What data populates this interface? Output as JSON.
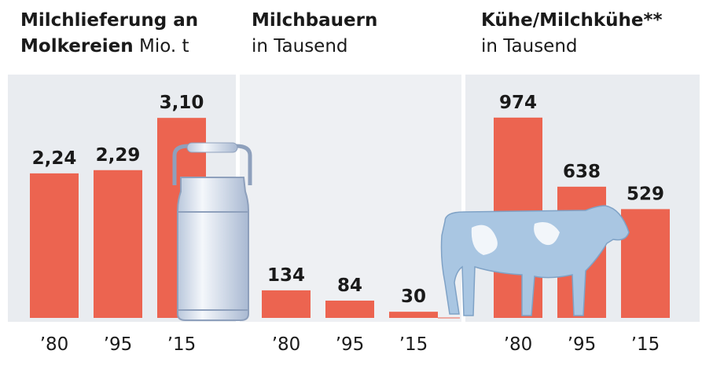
{
  "chart_data": [
    {
      "type": "bar",
      "title": "Milchlieferung an Molkereien",
      "subtitle": "Mio. t",
      "categories": [
        "’80",
        "’95",
        "’15"
      ],
      "values": [
        2.24,
        2.29,
        3.1
      ],
      "value_labels": [
        "2,24",
        "2,29",
        "3,10"
      ],
      "color": "#ec6450"
    },
    {
      "type": "bar",
      "title": "Milchbauern",
      "subtitle": "in Tausend",
      "categories": [
        "’80",
        "’95",
        "’15"
      ],
      "values": [
        134,
        84,
        30
      ],
      "color": "#ec6450"
    },
    {
      "type": "bar",
      "title": "Kühe/Milchkühe**",
      "subtitle": "in Tausend",
      "categories": [
        "’80",
        "’95",
        "’15"
      ],
      "values": [
        974,
        638,
        529
      ],
      "color": "#ec6450"
    }
  ]
}
